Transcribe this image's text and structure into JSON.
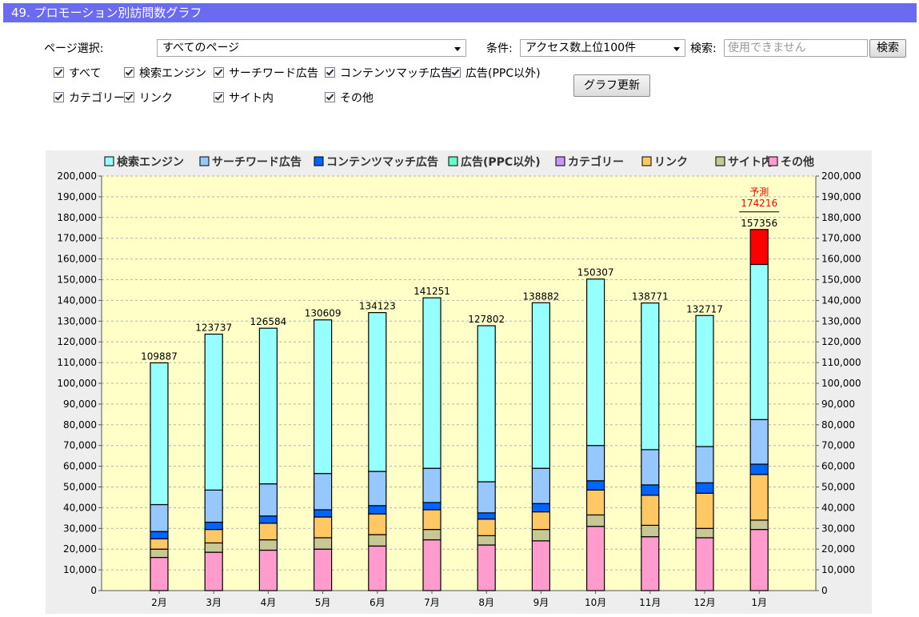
{
  "header": {
    "title": "49. プロモーション別訪問数グラフ"
  },
  "controls": {
    "page_select_label": "ページ選択:",
    "page_select_value": "すべてのページ",
    "condition_label": "条件:",
    "condition_value": "アクセス数上位100件",
    "search_label": "検索:",
    "search_placeholder": "使用できません",
    "search_button": "検索",
    "update_button": "グラフ更新",
    "checkboxes": [
      "すべて",
      "検索エンジン",
      "サーチワード広告",
      "コンテンツマッチ広告",
      "広告(PPC以外)",
      "カテゴリー",
      "リンク",
      "サイト内",
      "その他"
    ]
  },
  "chart_data": {
    "type": "bar",
    "stacked": true,
    "categories": [
      "2月",
      "3月",
      "4月",
      "5月",
      "6月",
      "7月",
      "8月",
      "9月",
      "10月",
      "11月",
      "12月",
      "1月"
    ],
    "series": [
      {
        "name": "その他",
        "color": "#ff9ccd",
        "values": [
          16000,
          18500,
          19500,
          20000,
          21500,
          24500,
          22000,
          24000,
          31000,
          26000,
          25500,
          29500
        ]
      },
      {
        "name": "サイト内",
        "color": "#c8c896",
        "values": [
          4000,
          4500,
          5000,
          5500,
          5500,
          5000,
          4500,
          5500,
          5500,
          5500,
          4500,
          4500
        ]
      },
      {
        "name": "リンク",
        "color": "#ffc864",
        "values": [
          5000,
          6500,
          8000,
          10000,
          10000,
          9500,
          8000,
          8500,
          12000,
          14500,
          17000,
          22000
        ]
      },
      {
        "name": "カテゴリー",
        "color": "#c896ff",
        "values": [
          0,
          0,
          0,
          0,
          0,
          0,
          0,
          0,
          0,
          0,
          0,
          0
        ]
      },
      {
        "name": "広告(PPC以外)",
        "color": "#64ffc8",
        "values": [
          0,
          0,
          0,
          0,
          0,
          0,
          0,
          0,
          0,
          0,
          0,
          0
        ]
      },
      {
        "name": "コンテンツマッチ広告",
        "color": "#0064ff",
        "values": [
          3500,
          3500,
          3500,
          3500,
          4000,
          3500,
          3000,
          4000,
          4500,
          5000,
          5000,
          5000
        ]
      },
      {
        "name": "サーチワード広告",
        "color": "#96c8ff",
        "values": [
          13000,
          15500,
          15500,
          17500,
          16500,
          16500,
          15000,
          17000,
          17000,
          17000,
          17500,
          21500
        ]
      },
      {
        "name": "検索エンジン",
        "color": "#96ffff",
        "values": [
          68387,
          75237,
          75084,
          74109,
          76623,
          82251,
          75302,
          79882,
          80307,
          70771,
          63217,
          74856
        ]
      }
    ],
    "totals": [
      109887,
      123737,
      126584,
      130609,
      134123,
      141251,
      127802,
      138882,
      150307,
      138771,
      132717,
      157356
    ],
    "forecast": {
      "category": "1月",
      "label": "予測",
      "value": 174216,
      "color": "#ff0000"
    },
    "legend_order": [
      "検索エンジン",
      "サーチワード広告",
      "コンテンツマッチ広告",
      "広告(PPC以外)",
      "カテゴリー",
      "リンク",
      "サイト内",
      "その他"
    ],
    "legend_position": "top",
    "plot_background": "#ffffc8",
    "ylim": [
      0,
      200000
    ],
    "ytick_step": 10000,
    "grid": true
  }
}
